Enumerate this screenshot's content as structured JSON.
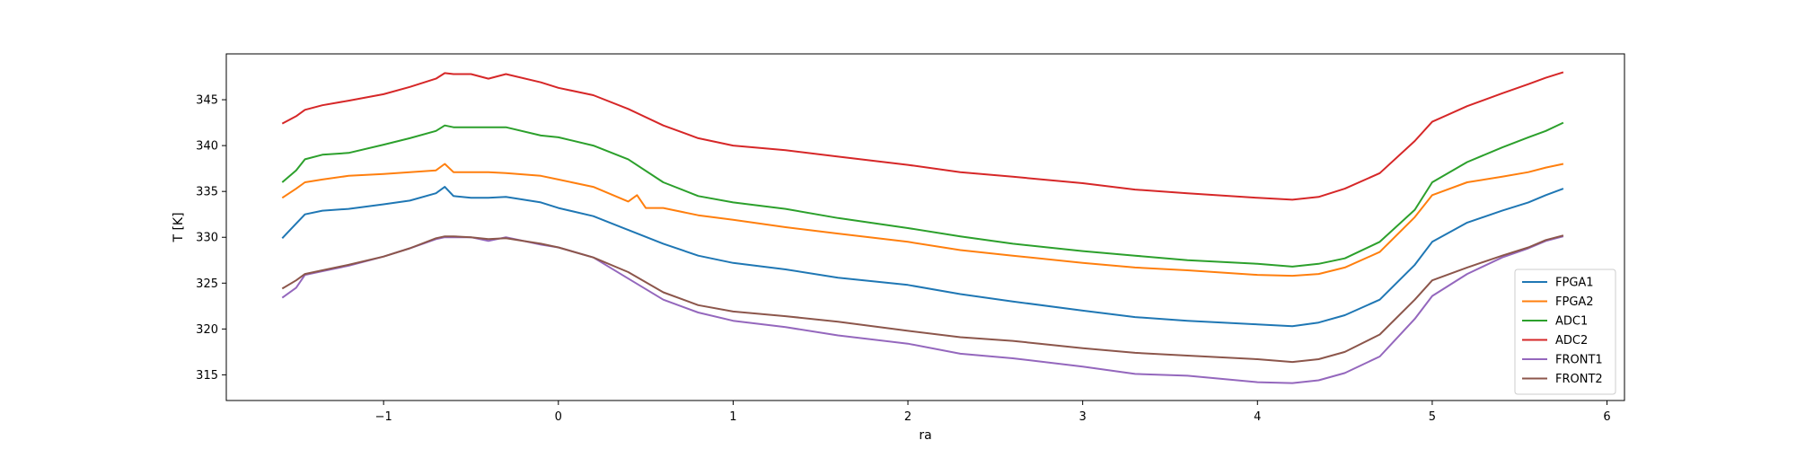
{
  "chart_data": {
    "type": "line",
    "title": "",
    "xlabel": "ra",
    "ylabel": "T [K]",
    "xlim": [
      -1.9,
      6.1
    ],
    "ylim": [
      312.2,
      350.0
    ],
    "xticks": [
      -1,
      0,
      1,
      2,
      3,
      4,
      5,
      6
    ],
    "xtick_labels": [
      "−1",
      "0",
      "1",
      "2",
      "3",
      "4",
      "5",
      "6"
    ],
    "yticks": [
      315,
      320,
      325,
      330,
      335,
      340,
      345
    ],
    "ytick_labels": [
      "315",
      "320",
      "325",
      "330",
      "335",
      "340",
      "345"
    ],
    "grid": false,
    "legend_position": "lower-right",
    "series": [
      {
        "name": "FPGA1",
        "color": "#1f77b4",
        "x": [
          -1.58,
          -1.5,
          -1.45,
          -1.35,
          -1.2,
          -1.0,
          -0.85,
          -0.7,
          -0.65,
          -0.6,
          -0.5,
          -0.4,
          -0.3,
          -0.1,
          0.0,
          0.2,
          0.4,
          0.6,
          0.8,
          1.0,
          1.3,
          1.6,
          2.0,
          2.3,
          2.6,
          3.0,
          3.3,
          3.6,
          4.0,
          4.2,
          4.35,
          4.5,
          4.7,
          4.9,
          5.0,
          5.2,
          5.4,
          5.55,
          5.65,
          5.75
        ],
        "y": [
          329.9,
          331.5,
          332.5,
          332.9,
          333.1,
          333.6,
          334.0,
          334.8,
          335.5,
          334.5,
          334.3,
          334.3,
          334.4,
          333.8,
          333.2,
          332.3,
          330.8,
          329.3,
          328.0,
          327.2,
          326.5,
          325.6,
          324.8,
          323.8,
          323.0,
          322.0,
          321.3,
          320.9,
          320.5,
          320.3,
          320.7,
          321.5,
          323.2,
          327.0,
          329.5,
          331.6,
          332.9,
          333.8,
          334.6,
          335.3
        ]
      },
      {
        "name": "FPGA2",
        "color": "#ff7f0e",
        "x": [
          -1.58,
          -1.5,
          -1.45,
          -1.35,
          -1.2,
          -1.0,
          -0.85,
          -0.7,
          -0.65,
          -0.6,
          -0.5,
          -0.4,
          -0.3,
          -0.1,
          0.0,
          0.2,
          0.4,
          0.45,
          0.5,
          0.6,
          0.8,
          1.0,
          1.3,
          1.6,
          2.0,
          2.3,
          2.6,
          3.0,
          3.3,
          3.6,
          4.0,
          4.2,
          4.35,
          4.5,
          4.7,
          4.9,
          5.0,
          5.2,
          5.4,
          5.55,
          5.65,
          5.75
        ],
        "y": [
          334.3,
          335.3,
          336.0,
          336.3,
          336.7,
          336.9,
          337.1,
          337.3,
          338.0,
          337.1,
          337.1,
          337.1,
          337.0,
          336.7,
          336.3,
          335.5,
          333.9,
          334.6,
          333.2,
          333.2,
          332.4,
          331.9,
          331.1,
          330.4,
          329.5,
          328.6,
          328.0,
          327.2,
          326.7,
          326.4,
          325.9,
          325.8,
          326.0,
          326.7,
          328.4,
          332.2,
          334.6,
          336.0,
          336.6,
          337.1,
          337.6,
          338.0
        ]
      },
      {
        "name": "ADC1",
        "color": "#2ca02c",
        "x": [
          -1.58,
          -1.5,
          -1.45,
          -1.35,
          -1.2,
          -1.0,
          -0.85,
          -0.7,
          -0.65,
          -0.6,
          -0.5,
          -0.4,
          -0.3,
          -0.1,
          0.0,
          0.2,
          0.4,
          0.6,
          0.8,
          1.0,
          1.3,
          1.6,
          2.0,
          2.3,
          2.6,
          3.0,
          3.3,
          3.6,
          4.0,
          4.2,
          4.35,
          4.5,
          4.7,
          4.9,
          5.0,
          5.2,
          5.4,
          5.55,
          5.65,
          5.75
        ],
        "y": [
          336.0,
          337.3,
          338.5,
          339.0,
          339.2,
          340.1,
          340.8,
          341.6,
          342.2,
          342.0,
          342.0,
          342.0,
          342.0,
          341.1,
          340.9,
          340.0,
          338.5,
          336.0,
          334.5,
          333.8,
          333.1,
          332.1,
          331.0,
          330.1,
          329.3,
          328.5,
          328.0,
          327.5,
          327.1,
          326.8,
          327.1,
          327.7,
          329.5,
          333.0,
          336.0,
          338.2,
          339.8,
          340.9,
          341.6,
          342.5
        ]
      },
      {
        "name": "ADC2",
        "color": "#d62728",
        "x": [
          -1.58,
          -1.5,
          -1.45,
          -1.35,
          -1.2,
          -1.0,
          -0.85,
          -0.7,
          -0.65,
          -0.6,
          -0.5,
          -0.4,
          -0.3,
          -0.1,
          0.0,
          0.2,
          0.4,
          0.6,
          0.8,
          1.0,
          1.3,
          1.6,
          2.0,
          2.3,
          2.6,
          3.0,
          3.3,
          3.6,
          4.0,
          4.2,
          4.35,
          4.5,
          4.7,
          4.9,
          5.0,
          5.2,
          5.4,
          5.55,
          5.65,
          5.75
        ],
        "y": [
          342.4,
          343.2,
          343.9,
          344.4,
          344.9,
          345.6,
          346.4,
          347.3,
          347.9,
          347.8,
          347.8,
          347.3,
          347.8,
          346.9,
          346.3,
          345.5,
          344.0,
          342.2,
          340.8,
          340.0,
          339.5,
          338.8,
          337.9,
          337.1,
          336.6,
          335.9,
          335.2,
          334.8,
          334.3,
          334.1,
          334.4,
          335.3,
          337.0,
          340.5,
          342.6,
          344.3,
          345.7,
          346.7,
          347.4,
          348.0
        ]
      },
      {
        "name": "FRONT1",
        "color": "#9467bd",
        "x": [
          -1.58,
          -1.5,
          -1.45,
          -1.35,
          -1.2,
          -1.0,
          -0.85,
          -0.7,
          -0.65,
          -0.6,
          -0.5,
          -0.4,
          -0.3,
          -0.1,
          0.0,
          0.2,
          0.4,
          0.6,
          0.8,
          1.0,
          1.3,
          1.6,
          2.0,
          2.3,
          2.6,
          3.0,
          3.3,
          3.6,
          4.0,
          4.2,
          4.35,
          4.5,
          4.7,
          4.9,
          5.0,
          5.2,
          5.4,
          5.55,
          5.65,
          5.75
        ],
        "y": [
          323.4,
          324.5,
          325.9,
          326.3,
          326.9,
          327.9,
          328.8,
          329.8,
          330.0,
          330.0,
          330.0,
          329.6,
          330.0,
          329.2,
          328.9,
          327.8,
          325.5,
          323.2,
          321.8,
          320.9,
          320.2,
          319.3,
          318.4,
          317.3,
          316.8,
          315.9,
          315.1,
          314.9,
          314.2,
          314.1,
          314.4,
          315.2,
          317.0,
          321.1,
          323.6,
          326.0,
          327.8,
          328.8,
          329.6,
          330.1
        ]
      },
      {
        "name": "FRONT2",
        "color": "#8c564b",
        "x": [
          -1.58,
          -1.5,
          -1.45,
          -1.35,
          -1.2,
          -1.0,
          -0.85,
          -0.7,
          -0.65,
          -0.6,
          -0.5,
          -0.4,
          -0.3,
          -0.1,
          0.0,
          0.2,
          0.4,
          0.6,
          0.8,
          1.0,
          1.3,
          1.6,
          2.0,
          2.3,
          2.6,
          3.0,
          3.3,
          3.6,
          4.0,
          4.2,
          4.35,
          4.5,
          4.7,
          4.9,
          5.0,
          5.2,
          5.4,
          5.55,
          5.65,
          5.75
        ],
        "y": [
          324.4,
          325.3,
          326.0,
          326.4,
          327.0,
          327.9,
          328.8,
          329.9,
          330.1,
          330.1,
          330.0,
          329.8,
          329.9,
          329.3,
          328.9,
          327.8,
          326.2,
          324.0,
          322.6,
          321.9,
          321.4,
          320.8,
          319.8,
          319.1,
          318.7,
          317.9,
          317.4,
          317.1,
          316.7,
          316.4,
          316.7,
          317.5,
          319.4,
          323.2,
          325.3,
          326.7,
          328.0,
          328.9,
          329.7,
          330.2
        ]
      }
    ]
  }
}
